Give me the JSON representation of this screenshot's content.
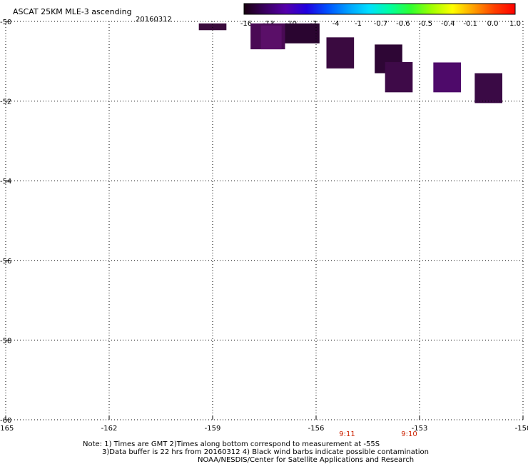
{
  "header": {
    "title": "ASCAT 25KM MLE-3 ascending",
    "date": "20160312"
  },
  "notes": {
    "line1": "Note: 1) Times are GMT 2)Times along bottom correspond to measurement at -55S",
    "line2": "3)Data buffer is 22 hrs from 20160312 4) Black wind barbs indicate possible contamination",
    "line3": "NOAA/NESDIS/Center for Satellite Applications and Research"
  },
  "chart_data": {
    "type": "heatmap",
    "xlim": [
      -165,
      -150
    ],
    "ylim": [
      -60,
      -50
    ],
    "x_ticks": [
      -165,
      -162,
      -159,
      -156,
      -153,
      -150
    ],
    "x_tick_labels": [
      "-165",
      "-162",
      "-159",
      "-156",
      "-153",
      "-150"
    ],
    "y_ticks": [
      -50,
      -52,
      -54,
      -56,
      -58,
      -60
    ],
    "y_tick_labels": [
      "-50",
      "-52",
      "-54",
      "-56",
      "-58",
      "-60"
    ],
    "grid": true,
    "colorbar": {
      "tick_labels": [
        "-16",
        "-13",
        "-10",
        "-7",
        "-4",
        "-1",
        "-0.7",
        "-0.6",
        "-0.5",
        "-0.4",
        "-0.1",
        "0.0",
        "1.0"
      ],
      "colors": [
        "#1a0010",
        "#3a0060",
        "#5500aa",
        "#2000e0",
        "#0050ff",
        "#00a0ff",
        "#00e0ff",
        "#00ffa0",
        "#30ff30",
        "#a0ff00",
        "#ffff00",
        "#ffa000",
        "#ff4000",
        "#ff0000"
      ]
    },
    "cells": [
      {
        "lon0": -159.4,
        "lon1": -158.6,
        "lat0": -50.22,
        "lat1": -50.05,
        "color": "#3a0a3c"
      },
      {
        "lon0": -157.9,
        "lon1": -156.9,
        "lat0": -50.7,
        "lat1": -50.05,
        "color": "#4a0a55"
      },
      {
        "lon0": -157.6,
        "lon1": -157.0,
        "lat0": -50.7,
        "lat1": -50.1,
        "color": "#5a0f68"
      },
      {
        "lon0": -156.9,
        "lon1": -155.9,
        "lat0": -50.55,
        "lat1": -50.05,
        "color": "#2a0530"
      },
      {
        "lon0": -155.7,
        "lon1": -154.9,
        "lat0": -51.18,
        "lat1": -50.4,
        "color": "#3a0a40"
      },
      {
        "lon0": -154.3,
        "lon1": -153.5,
        "lat0": -51.3,
        "lat1": -50.58,
        "color": "#2e0635"
      },
      {
        "lon0": -154.0,
        "lon1": -153.2,
        "lat0": -51.78,
        "lat1": -51.02,
        "color": "#3e0a48"
      },
      {
        "lon0": -152.6,
        "lon1": -151.8,
        "lat0": -51.78,
        "lat1": -51.03,
        "color": "#4e0a6a"
      },
      {
        "lon0": -151.4,
        "lon1": -150.6,
        "lat0": -52.05,
        "lat1": -51.3,
        "color": "#3a0a45"
      }
    ],
    "time_labels": [
      {
        "lon": -155.1,
        "text": "9:11"
      },
      {
        "lon": -153.3,
        "text": "9:10"
      }
    ]
  }
}
